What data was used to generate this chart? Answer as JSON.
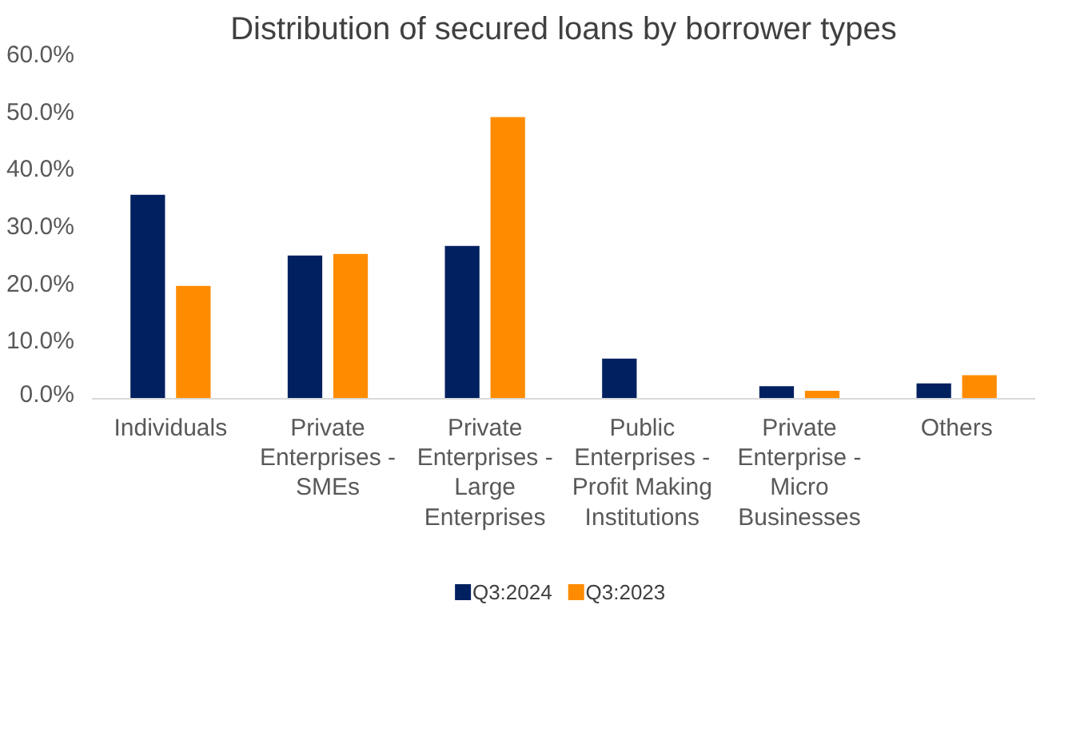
{
  "chart_data": {
    "type": "bar",
    "title": "Distribution of secured loans by borrower types",
    "categories": [
      "Individuals",
      "Private Enterprises - SMEs",
      "Private Enterprises - Large Enterprises",
      "Public Enterprises - Profit Making Institutions",
      "Private Enterprise - Micro Businesses",
      "Others"
    ],
    "series": [
      {
        "name": "Q3:2024",
        "color": "#002060",
        "values": [
          35.6,
          25.0,
          26.7,
          7.0,
          2.2,
          2.7
        ]
      },
      {
        "name": "Q3:2023",
        "color": "#ff8c00",
        "values": [
          19.7,
          25.3,
          49.2,
          0,
          1.4,
          4.1
        ]
      }
    ],
    "ylim": [
      0,
      60
    ],
    "yticks": [
      {
        "value": 0,
        "label": "0.0%"
      },
      {
        "value": 10,
        "label": "10.0%"
      },
      {
        "value": 20,
        "label": "20.0%"
      },
      {
        "value": 30,
        "label": "30.0%"
      },
      {
        "value": 40,
        "label": "40.0%"
      },
      {
        "value": 50,
        "label": "50.0%"
      },
      {
        "value": 60,
        "label": "60.0%"
      }
    ],
    "grid": false,
    "legend": "bottom"
  }
}
